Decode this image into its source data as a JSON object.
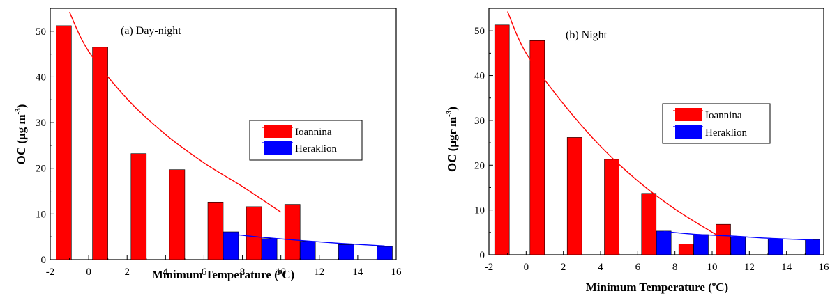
{
  "chart_data": [
    {
      "type": "bar",
      "title": "(a) Day-night",
      "xlabel": "Minimum Temperature (",
      "xlabel_unit_sup": "o",
      "xlabel_unit": "C)",
      "ylabel_prefix": "OC (",
      "ylabel_mu": "μ",
      "ylabel_unit": "g m",
      "ylabel_sup": "-3",
      "ylabel_suffix": ")",
      "xlim": [
        -2,
        16
      ],
      "ylim": [
        0,
        55
      ],
      "x_ticks": [
        "-2",
        "0",
        "2",
        "4",
        "6",
        "8",
        "10",
        "12",
        "14",
        "16"
      ],
      "y_ticks": [
        "0",
        "10",
        "20",
        "30",
        "40",
        "50"
      ],
      "series": [
        {
          "name": "Ioannina",
          "color": "#ff0000",
          "x": [
            -1.3,
            0.6,
            2.6,
            4.6,
            6.6,
            8.6,
            10.6
          ],
          "values": [
            51.2,
            46.5,
            23.2,
            19.7,
            12.6,
            11.6,
            12.1
          ],
          "fit": {
            "x": [
              -1,
              0,
              2,
              4,
              6,
              8,
              10
            ],
            "y": [
              54.2,
              45.6,
              35.2,
              27.4,
              21.2,
              16.0,
              10.4
            ]
          }
        },
        {
          "name": "Heraklion",
          "color": "#0000ff",
          "x": [
            7.4,
            9.4,
            11.4,
            13.4,
            15.4
          ],
          "values": [
            6.1,
            4.6,
            4.0,
            3.3,
            2.9
          ],
          "fit": {
            "x": [
              7.4,
              9,
              11,
              13,
              15.4
            ],
            "y": [
              5.6,
              4.9,
              4.2,
              3.6,
              3.0
            ]
          }
        }
      ],
      "legend": [
        "Ioannina",
        "Heraklion"
      ]
    },
    {
      "type": "bar",
      "title": "(b) Night",
      "xlabel": "Minimum Temperature (",
      "xlabel_unit_sup": "o",
      "xlabel_unit": "C)",
      "ylabel_prefix": "OC (",
      "ylabel_mu": "μ",
      "ylabel_unit": "gr m",
      "ylabel_sup": "-3",
      "ylabel_suffix": ")",
      "xlim": [
        -2,
        16
      ],
      "ylim": [
        0,
        55
      ],
      "x_ticks": [
        "-2",
        "0",
        "2",
        "4",
        "6",
        "8",
        "10",
        "12",
        "14",
        "16"
      ],
      "y_ticks": [
        "0",
        "10",
        "20",
        "30",
        "40",
        "50"
      ],
      "series": [
        {
          "name": "Ioannina",
          "color": "#ff0000",
          "x": [
            -1.3,
            0.6,
            2.6,
            4.6,
            6.6,
            8.6,
            10.6
          ],
          "values": [
            51.3,
            47.8,
            26.2,
            21.3,
            13.7,
            2.4,
            6.8
          ],
          "fit": {
            "x": [
              -1,
              0,
              2,
              4,
              6,
              8,
              10.5
            ],
            "y": [
              54.3,
              45.0,
              33.7,
              24.2,
              16.5,
              10.2,
              3.8
            ]
          }
        },
        {
          "name": "Heraklion",
          "color": "#0000ff",
          "x": [
            7.4,
            9.4,
            11.4,
            13.4,
            15.4
          ],
          "values": [
            5.3,
            4.5,
            4.0,
            3.5,
            3.4
          ],
          "fit": {
            "x": [
              7.4,
              9,
              11,
              13,
              15.4
            ],
            "y": [
              5.2,
              4.6,
              4.2,
              3.7,
              3.3
            ]
          }
        }
      ],
      "legend": [
        "Ioannina",
        "Heraklion"
      ]
    }
  ]
}
